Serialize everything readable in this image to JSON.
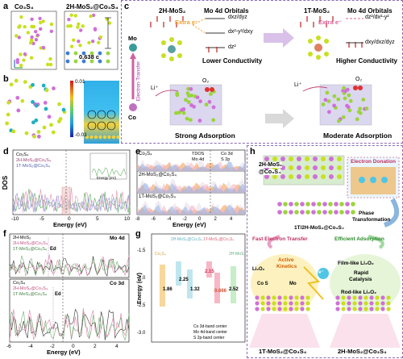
{
  "panel_a": {
    "label": "a",
    "left_title": "Co₃S₄",
    "right_title": "2H-MoS₂@Co₃S₄",
    "spacing": "0.638 c"
  },
  "panel_b": {
    "label": "b",
    "cbar_max": "0.01",
    "cbar_min": "-0.01"
  },
  "panel_c": {
    "label": "c",
    "left_title": "2H-MoS₂",
    "left_orbitals": "Mo 4d Orbitals",
    "right_title": "1T-MoS₂",
    "right_orbitals": "Mo 4d Orbitals",
    "extra_e": "Extra e⁻",
    "orb_xz_yz": "dxz/dyz",
    "orb_x2y2_xy": "dx²-y²/dxy",
    "orb_z2": "dz²",
    "orb_z2_x2y2": "dz²/dx²-y²",
    "orb_xy_xz_yz": "dxy/dxz/dyz",
    "lower": "Lower Conductivity",
    "higher": "Higher Conductivity",
    "strong": "Strong Adsorption",
    "moderate": "Moderate Adsorption",
    "mo": "Mo",
    "co": "Co",
    "electron_transfer": "Electron Transfer",
    "li": "Li⁺",
    "li_right": "Li⁺",
    "o2": "O₂",
    "o2_right": "O₂"
  },
  "panel_d": {
    "label": "d",
    "ylabel": "DOS",
    "xlabel": "Energy (eV)",
    "xticks": [
      "-10",
      "-5",
      "0",
      "5",
      "10"
    ],
    "legend": [
      "Co₃S₄",
      "2H-MoS₂@Co₃S₄",
      "1T-MoS₂@Co₃S₄"
    ],
    "inset_xlabel": "Energy (eV)"
  },
  "panel_e": {
    "label": "e",
    "rows": [
      "Co₃S₄",
      "2H-MoS₂@Co₃S₄",
      "1T-MoS₂@Co₃S₄"
    ],
    "legend": [
      "TDOS",
      "Co 3d",
      "Mo 4d",
      "S 2p"
    ],
    "xlabel": "Energy (eV)",
    "xticks": [
      "-8",
      "-6",
      "-4",
      "-2",
      "0",
      "2",
      "4"
    ]
  },
  "panel_f": {
    "label": "f",
    "top_legend": [
      "2H-MoS₂",
      "2H-MoS₂@Co₃S₄",
      "1T-MoS₂@Co₃S₄"
    ],
    "top_tag": "Mo 4d",
    "top_ed": "Ed",
    "bottom_legend": [
      "Co₃S₄",
      "2H-MoS₂@Co₃S₄",
      "1T-MoS₂@Co₃S₄"
    ],
    "bottom_tag": "Co 3d",
    "bottom_ed": "Ed",
    "xlabel": "Energy (eV)",
    "xticks": [
      "-6",
      "-4",
      "-2",
      "0",
      "2",
      "4"
    ]
  },
  "panel_g": {
    "label": "g",
    "ylabel": "Energy (eV)",
    "yticks": [
      "-1.5",
      "-2.0",
      "-2.5",
      "-3.0"
    ],
    "groups": [
      "Co₃S₄",
      "2H-MoS₂@Co₃S₄",
      "1T-MoS₂@Co₃S₄",
      "2H-MoS₂"
    ],
    "values": [
      "1.86",
      "2.25",
      "1.32",
      "2.15",
      "0.666",
      "2.52"
    ],
    "legend": [
      "Co 3d-band center",
      "Mo 4d-band center",
      "S 2p-band center"
    ]
  },
  "panel_h": {
    "label": "h",
    "material": "2H-MoS₂",
    "material2": "@Co₃S₄",
    "donation": "Electron Donation",
    "phase": "Phase",
    "transformation": "Transformation",
    "hetero": "1T/2H-MoS₂@Co₃S₄",
    "fast": "Fast Electron Transfer",
    "efficient": "Efficient Adsorption",
    "active": "Active",
    "kinetics": "Kinetics",
    "li2o2": "Li₂O₂",
    "film": "Film-like Li₂O₂",
    "rapid": "Rapid",
    "catalysis": "Catalysis",
    "rod": "Rod-like Li₂O₂",
    "cos": "Co S",
    "mo": "Mo",
    "e": "e⁻",
    "bottom_left": "1T-MoS₂@Co₃S₄",
    "bottom_right": "2H-MoS₂@Co₃S₄"
  },
  "colors": {
    "co_yellow": "#c8e020",
    "s_green": "#9ad53a",
    "mo_pink": "#d070d8",
    "blue_cyan": "#4fc6e6",
    "orange": "#f3a45a",
    "pink": "#f3a2c4",
    "dashed_purple": "#8a6bb3"
  }
}
